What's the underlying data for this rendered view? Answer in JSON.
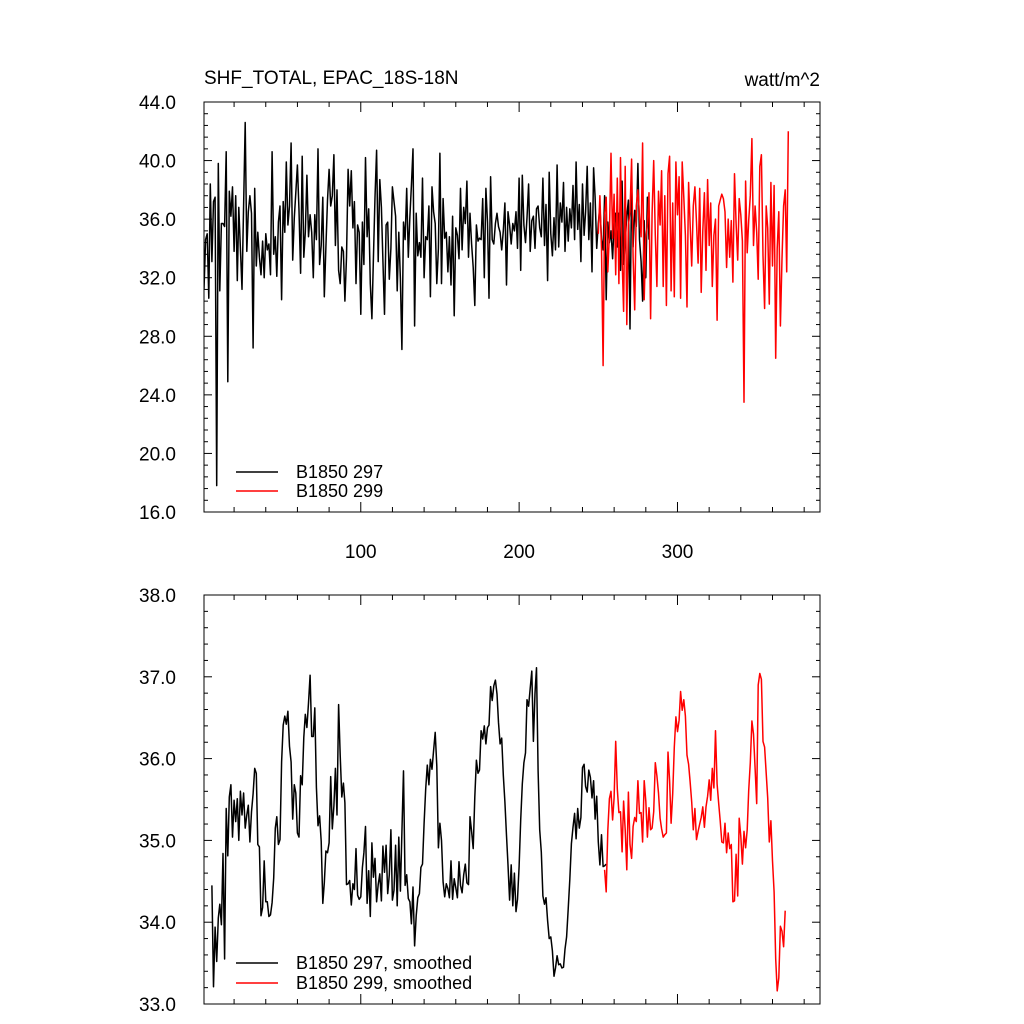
{
  "chart_data": [
    {
      "type": "line",
      "title": "SHF_TOTAL, EPAC_18S-18N",
      "units": "watt/m^2",
      "xlabel": "",
      "ylabel": "",
      "xlim": [
        1,
        390
      ],
      "ylim": [
        16.0,
        44.0
      ],
      "yticks": [
        "44.0",
        "40.0",
        "36.0",
        "32.0",
        "28.0",
        "24.0",
        "20.0",
        "16.0"
      ],
      "xticks": [
        "100",
        "200",
        "300"
      ],
      "legend_position": "bottom-left",
      "series": [
        {
          "name": "B1850 297",
          "color": "#000000",
          "x_start": 1,
          "values": [
            31.2,
            34.6,
            35.0,
            30.6,
            38.4,
            33.1,
            37.2,
            37.5,
            17.8,
            39.8,
            31.1,
            35.7,
            35.7,
            35.5,
            40.6,
            24.9,
            37.9,
            36.2,
            38.2,
            33.8,
            37.6,
            31.8,
            36.8,
            34.0,
            31.2,
            36.9,
            42.6,
            33.8,
            36.5,
            37.6,
            36.4,
            27.2,
            38.1,
            32.8,
            35.1,
            33.4,
            32.2,
            34.5,
            32.0,
            35.0,
            33.9,
            34.3,
            32.2,
            40.6,
            33.6,
            34.8,
            32.1,
            35.8,
            36.9,
            30.5,
            37.2,
            35.1,
            39.9,
            35.6,
            36.9,
            41.2,
            33.2,
            36.1,
            37.8,
            39.7,
            36.6,
            32.3,
            40.3,
            33.4,
            35.1,
            39.0,
            34.8,
            36.3,
            35.1,
            32.0,
            36.3,
            34.6,
            40.8,
            32.9,
            34.2,
            37.5,
            30.7,
            34.1,
            37.3,
            39.4,
            36.9,
            37.6,
            40.4,
            34.2,
            38.0,
            32.5,
            31.6,
            34.1,
            33.8,
            30.4,
            33.4,
            39.4,
            36.9,
            39.3,
            35.4,
            37.2,
            31.6,
            35.6,
            35.1,
            29.5,
            35.8,
            32.9,
            40.2,
            34.8,
            36.7,
            31.6,
            29.2,
            33.3,
            37.5,
            40.7,
            33.1,
            38.7,
            36.8,
            33.2,
            29.5,
            35.6,
            35.8,
            31.9,
            34.0,
            38.2,
            37.2,
            36.2,
            31.1,
            35.1,
            31.9,
            27.1,
            35.8,
            34.6,
            38.1,
            33.4,
            36.2,
            38.3,
            40.8,
            28.7,
            36.4,
            33.5,
            34.4,
            33.4,
            38.8,
            32.0,
            34.8,
            34.6,
            36.9,
            30.7,
            38.2,
            36.5,
            35.7,
            31.6,
            34.0,
            40.5,
            31.6,
            37.4,
            34.7,
            35.1,
            32.4,
            34.8,
            31.5,
            36.2,
            29.4,
            35.4,
            34.9,
            33.3,
            38.1,
            33.9,
            36.8,
            35.7,
            38.6,
            33.4,
            36.4,
            34.3,
            32.7,
            30.1,
            35.6,
            34.5,
            34.7,
            34.6,
            37.4,
            32.0,
            38.1,
            35.8,
            30.6,
            38.9,
            34.6,
            34.3,
            35.7,
            36.4,
            35.5,
            35.1,
            33.9,
            35.2,
            37.1,
            31.5,
            36.5,
            35.6,
            34.3,
            35.7,
            35.2,
            36.5,
            34.0,
            38.8,
            32.5,
            39.0,
            35.6,
            34.4,
            36.1,
            38.4,
            33.8,
            35.9,
            36.2,
            34.0,
            36.7,
            36.9,
            35.4,
            34.8,
            38.8,
            34.2,
            37.0,
            31.8,
            39.2,
            35.0,
            33.5,
            36.1,
            33.9,
            39.7,
            34.1,
            37.1,
            35.8,
            38.5,
            33.8,
            36.8,
            34.5,
            36.7,
            35.4,
            38.3,
            34.6,
            39.9,
            35.3,
            37.0,
            33.1,
            38.4,
            34.9,
            36.5,
            39.6,
            34.6,
            37.1,
            32.4,
            39.5,
            37.5,
            34.0,
            35.7,
            36.9,
            34.6,
            33.9,
            37.6,
            30.5,
            35.8,
            34.4,
            35.2,
            33.3,
            35.6,
            36.4,
            34.1,
            36.4,
            32.5,
            38.6,
            32.9,
            34.5,
            36.2,
            37.3,
            28.5,
            38.3,
            34.1,
            36.6,
            35.5,
            39.8,
            34.6,
            33.1,
            30.4,
            35.9,
            32.0,
            37.5,
            34.6
          ]
        },
        {
          "name": "B1850 299",
          "color": "#ff0000",
          "x_start": 250,
          "values": [
            35.0,
            37.6,
            34.0,
            26.0,
            36.3,
            37.5,
            32.4,
            35.0,
            40.5,
            34.7,
            37.7,
            32.2,
            38.8,
            31.6,
            40.2,
            33.3,
            29.7,
            39.6,
            28.8,
            35.6,
            36.5,
            40.1,
            33.4,
            29.8,
            36.9,
            38.0,
            36.2,
            34.8,
            41.2,
            30.5,
            34.7,
            35.7,
            37.8,
            29.2,
            36.4,
            40.0,
            34.9,
            31.4,
            37.9,
            35.6,
            39.3,
            31.4,
            37.6,
            30.1,
            39.1,
            40.3,
            31.1,
            37.1,
            30.7,
            39.9,
            36.3,
            38.9,
            30.6,
            39.9,
            37.5,
            34.9,
            30.0,
            38.5,
            35.7,
            32.8,
            36.9,
            38.2,
            35.8,
            33.0,
            38.1,
            31.0,
            35.2,
            37.8,
            32.5,
            38.7,
            34.2,
            37.1,
            31.4,
            34.9,
            36.0,
            29.1,
            36.9,
            37.3,
            37.7,
            37.4,
            36.5,
            32.7,
            36.0,
            33.4,
            35.9,
            31.7,
            39.1,
            35.7,
            33.2,
            37.4,
            36.3,
            34.5,
            23.5,
            38.6,
            33.7,
            35.9,
            37.6,
            41.5,
            34.2,
            36.9,
            35.1,
            31.9,
            39.6,
            40.4,
            33.5,
            29.9,
            36.9,
            35.4,
            30.2,
            38.5,
            32.8,
            38.3,
            26.5,
            34.0,
            36.5,
            28.7,
            33.3,
            36.9,
            38.0,
            32.4,
            42.0
          ]
        }
      ]
    },
    {
      "type": "line",
      "title": "",
      "xlabel": "",
      "ylabel": "",
      "xlim": [
        1,
        390
      ],
      "ylim": [
        33.0,
        38.0
      ],
      "yticks": [
        "38.0",
        "37.0",
        "36.0",
        "35.0",
        "34.0",
        "33.0"
      ],
      "xticks": [],
      "legend_position": "bottom-left",
      "series": [
        {
          "name": "B1850 297, smoothed",
          "color": "#000000",
          "x_start": 6,
          "values": [
            34.45,
            33.21,
            33.94,
            33.52,
            34.05,
            34.22,
            33.97,
            34.84,
            33.55,
            35.39,
            34.81,
            35.53,
            35.68,
            35.04,
            35.49,
            35.23,
            35.51,
            35.0,
            35.6,
            35.31,
            35.58,
            35.15,
            35.31,
            35.43,
            34.98,
            35.35,
            35.57,
            35.88,
            35.82,
            34.95,
            34.92,
            34.08,
            34.18,
            34.75,
            34.25,
            34.25,
            34.07,
            34.09,
            34.24,
            34.54,
            35.15,
            35.29,
            34.95,
            35.01,
            35.96,
            36.41,
            36.52,
            36.42,
            36.58,
            36.15,
            35.96,
            35.26,
            35.68,
            35.58,
            35.09,
            35.04,
            35.79,
            35.68,
            36.26,
            36.54,
            36.38,
            36.68,
            37.02,
            36.27,
            36.27,
            36.62,
            35.65,
            35.18,
            35.3,
            34.99,
            34.23,
            34.48,
            34.87,
            34.85,
            34.97,
            35.78,
            35.14,
            35.42,
            35.88,
            35.31,
            36.66,
            36.04,
            35.53,
            35.7,
            35.46,
            34.46,
            34.47,
            34.51,
            34.21,
            34.47,
            34.4,
            34.9,
            34.33,
            34.28,
            34.31,
            34.67,
            34.85,
            35.17,
            34.23,
            34.63,
            34.07,
            34.97,
            34.55,
            34.78,
            34.25,
            34.46,
            34.59,
            34.26,
            34.93,
            34.61,
            34.94,
            34.35,
            34.58,
            35.13,
            34.27,
            34.39,
            34.94,
            34.2,
            35.04,
            34.38,
            35.1,
            35.85,
            34.45,
            34.58,
            34.29,
            34.25,
            33.98,
            34.43,
            33.71,
            34.08,
            34.3,
            34.35,
            34.67,
            34.71,
            35.21,
            35.63,
            35.92,
            35.68,
            35.99,
            35.87,
            36.1,
            36.32,
            35.91,
            34.91,
            35.21,
            35.0,
            34.49,
            34.31,
            34.47,
            34.41,
            34.3,
            34.75,
            34.28,
            34.53,
            34.42,
            34.3,
            34.74,
            34.45,
            34.36,
            34.58,
            34.71,
            34.48,
            34.46,
            35.29,
            35.11,
            34.9,
            35.53,
            35.98,
            35.82,
            35.86,
            36.34,
            36.24,
            36.4,
            36.18,
            36.38,
            36.41,
            36.88,
            36.71,
            36.89,
            36.96,
            36.79,
            36.44,
            36.18,
            36.25,
            35.8,
            35.47,
            35.06,
            34.7,
            34.27,
            34.7,
            34.2,
            34.6,
            34.13,
            34.28,
            34.68,
            35.25,
            35.69,
            35.95,
            36.07,
            36.72,
            36.64,
            36.86,
            37.07,
            36.21,
            36.8,
            37.11,
            35.85,
            35.13,
            34.86,
            34.32,
            34.22,
            34.3,
            34.02,
            33.8,
            33.82,
            33.65,
            33.34,
            33.44,
            33.59,
            33.48,
            33.49,
            33.44,
            33.45,
            33.67,
            33.82,
            34.16,
            34.52,
            34.96,
            35.16,
            35.33,
            35.02,
            35.39,
            35.15,
            35.28,
            35.89,
            35.93,
            35.66,
            35.59,
            35.86,
            35.77,
            35.52,
            35.73,
            35.26,
            35.54,
            34.98,
            34.7,
            35.07,
            34.68,
            34.69,
            34.71
          ]
        },
        {
          "name": "B1850 299, smoothed",
          "color": "#ff0000",
          "x_start": 254,
          "values": [
            34.64,
            34.37,
            35.12,
            35.51,
            35.6,
            35.25,
            35.52,
            36.21,
            35.63,
            35.34,
            35.35,
            34.86,
            35.48,
            35.13,
            34.64,
            35.59,
            34.95,
            34.78,
            35.17,
            35.28,
            35.23,
            35.73,
            35.33,
            35.34,
            34.98,
            35.73,
            35.48,
            35.04,
            35.4,
            35.13,
            35.15,
            35.35,
            35.95,
            35.79,
            35.58,
            35.27,
            35.14,
            35.04,
            35.07,
            35.09,
            36.08,
            35.73,
            35.21,
            35.57,
            36.14,
            36.51,
            36.33,
            36.47,
            36.82,
            36.59,
            36.72,
            36.52,
            36.04,
            35.93,
            35.72,
            35.47,
            35.13,
            35.39,
            35.01,
            35.11,
            35.2,
            35.28,
            35.41,
            35.16,
            35.41,
            35.54,
            35.74,
            35.49,
            35.88,
            35.64,
            36.34,
            35.69,
            35.45,
            35.24,
            34.98,
            34.97,
            35.21,
            34.85,
            35.09,
            34.9,
            34.95,
            34.25,
            34.26,
            34.83,
            34.32,
            35.27,
            35.05,
            34.71,
            35.11,
            34.91,
            35.13,
            35.61,
            35.95,
            36.46,
            36.3,
            35.88,
            35.45,
            36.9,
            37.04,
            36.97,
            36.21,
            36.14,
            35.82,
            35.52,
            34.98,
            35.24,
            34.75,
            34.37,
            33.55,
            33.16,
            33.32,
            33.95,
            33.89,
            33.7,
            34.14
          ]
        }
      ]
    }
  ]
}
